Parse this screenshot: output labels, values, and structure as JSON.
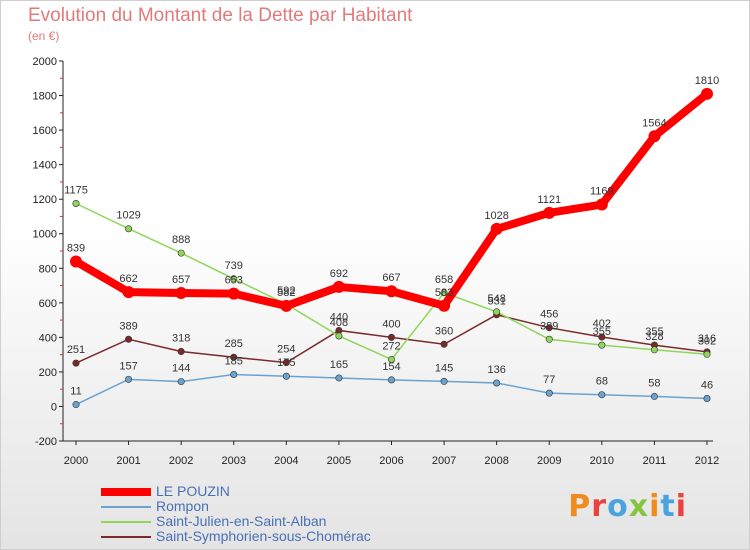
{
  "header": {
    "title": "Evolution du Montant de la Dette par Habitant",
    "unit": "(en €)"
  },
  "logo": {
    "text": "Proxiti",
    "colors": [
      "#f28b1e",
      "#e8413e",
      "#4aa3df",
      "#86c440",
      "#f28b1e",
      "#4aa3df",
      "#e8413e"
    ]
  },
  "chart_data": {
    "type": "line",
    "title": "Evolution du Montant de la Dette par Habitant",
    "subtitle": "(en €)",
    "xlabel": "",
    "ylabel": "",
    "x": [
      "2000",
      "2001",
      "2002",
      "2003",
      "2004",
      "2005",
      "2006",
      "2007",
      "2008",
      "2009",
      "2010",
      "2011",
      "2012"
    ],
    "ylim": [
      -200,
      2000
    ],
    "yticks": [
      -200,
      0,
      200,
      400,
      600,
      800,
      1000,
      1200,
      1400,
      1600,
      1800,
      2000
    ],
    "grid": false,
    "legend_position": "bottom",
    "series": [
      {
        "name": "LE POUZIN",
        "color": "#ff0000",
        "values": [
          839,
          662,
          657,
          653,
          582,
          692,
          667,
          583,
          1028,
          1121,
          1169,
          1564,
          1810
        ]
      },
      {
        "name": "Rompon",
        "color": "#6aa2d0",
        "values": [
          11,
          157,
          144,
          185,
          175,
          165,
          154,
          145,
          136,
          77,
          68,
          58,
          46
        ]
      },
      {
        "name": "Saint-Julien-en-Saint-Alban",
        "color": "#8fd65a",
        "values": [
          1175,
          1029,
          888,
          739,
          592,
          408,
          272,
          658,
          548,
          389,
          355,
          328,
          302
        ]
      },
      {
        "name": "Saint-Symphorien-sous-Chomérac",
        "color": "#7a2a2a",
        "values": [
          251,
          389,
          318,
          285,
          254,
          440,
          400,
          360,
          531,
          456,
          402,
          355,
          316
        ]
      }
    ]
  }
}
